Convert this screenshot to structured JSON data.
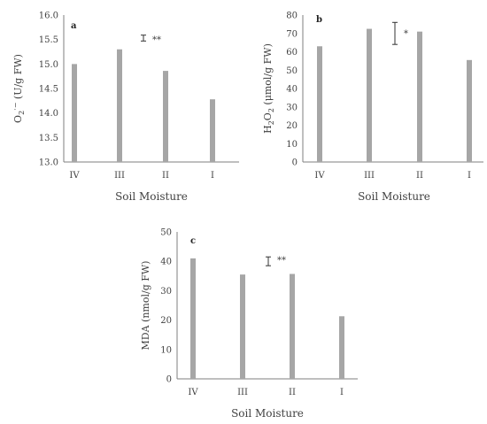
{
  "chart_data": [
    {
      "panel": "a",
      "type": "bar",
      "categories": [
        "IV",
        "III",
        "II",
        "I"
      ],
      "values": [
        15.0,
        15.3,
        14.86,
        14.28
      ],
      "xlabel": "Soil Moisture",
      "ylabel_parts": [
        "O",
        "2",
        "·−",
        " (U/g FW)"
      ],
      "ylim": [
        13.0,
        16.0
      ],
      "yticks": [
        "13.0",
        "13.5",
        "14.0",
        "14.5",
        "15.0",
        "15.5",
        "16.0"
      ],
      "significance": "**",
      "errorbar": [
        15.47,
        15.59
      ],
      "bar_color": "#a6a6a6"
    },
    {
      "panel": "b",
      "type": "bar",
      "categories": [
        "IV",
        "III",
        "II",
        "I"
      ],
      "values": [
        63,
        72.5,
        71,
        55.5
      ],
      "xlabel": "Soil Moisture",
      "ylabel_parts": [
        "H",
        "2",
        "O",
        "2",
        " (μmol/g FW)"
      ],
      "ylim": [
        0,
        80
      ],
      "yticks": [
        "0",
        "10",
        "20",
        "30",
        "40",
        "50",
        "60",
        "70",
        "80"
      ],
      "significance": "*",
      "errorbar": [
        64,
        76
      ],
      "bar_color": "#a6a6a6"
    },
    {
      "panel": "c",
      "type": "bar",
      "categories": [
        "IV",
        "III",
        "II",
        "I"
      ],
      "values": [
        41,
        35.5,
        35.7,
        21.3
      ],
      "xlabel": "Soil Moisture",
      "ylabel": "MDA (nmol/g FW)",
      "ylim": [
        0,
        50
      ],
      "yticks": [
        "0",
        "10",
        "20",
        "30",
        "40",
        "50"
      ],
      "significance": "**",
      "errorbar": [
        38.5,
        41.5
      ],
      "bar_color": "#a6a6a6"
    }
  ]
}
